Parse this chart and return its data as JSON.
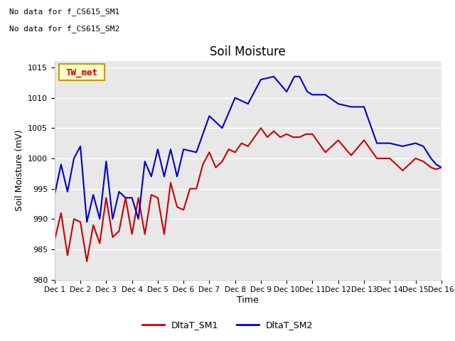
{
  "title": "Soil Moisture",
  "ylabel": "Soil Moisture (mV)",
  "xlabel": "Time",
  "ylim": [
    980,
    1016
  ],
  "yticks": [
    980,
    985,
    990,
    995,
    1000,
    1005,
    1010,
    1015
  ],
  "fig_bg_color": "#ffffff",
  "plot_bg_color": "#e8e8e8",
  "no_data_text1": "No data for f_CS615_SM1",
  "no_data_text2": "No data for f_CS615_SM2",
  "tw_met_label": "TW_met",
  "xtick_labels": [
    "Dec 1",
    "Dec 2",
    "Dec 3",
    "Dec 4",
    "Dec 5",
    "Dec 6",
    "Dec 7",
    "Dec 8",
    "Dec 9",
    "Dec 10",
    "Dec 11",
    "Dec 12",
    "Dec 13",
    "Dec 14",
    "Dec 15",
    "Dec 16"
  ],
  "sm1_color": "#cc0000",
  "sm2_color": "#0000cc",
  "sm1_label": "DltaT_SM1",
  "sm2_label": "DltaT_SM2",
  "sm1_x": [
    0.0,
    0.25,
    0.5,
    0.75,
    1.0,
    1.25,
    1.5,
    1.75,
    2.0,
    2.25,
    2.5,
    2.75,
    3.0,
    3.25,
    3.5,
    3.75,
    4.0,
    4.25,
    4.5,
    4.75,
    5.0,
    5.25,
    5.5,
    5.75,
    6.0,
    6.25,
    6.5,
    6.75,
    7.0,
    7.25,
    7.5,
    7.75,
    8.0,
    8.25,
    8.5,
    8.75,
    9.0,
    9.25,
    9.5,
    9.75,
    10.0,
    10.5,
    11.0,
    11.5,
    12.0,
    12.5,
    13.0,
    13.5,
    14.0,
    14.3,
    14.6,
    14.8,
    15.0
  ],
  "sm1_y": [
    986.5,
    991.0,
    984.0,
    990.0,
    989.5,
    983.0,
    989.0,
    986.0,
    993.5,
    987.0,
    988.0,
    993.5,
    987.5,
    993.5,
    987.5,
    994.0,
    993.5,
    987.5,
    996.0,
    992.0,
    991.5,
    995.0,
    995.0,
    999.0,
    1001.0,
    998.5,
    999.5,
    1001.5,
    1001.0,
    1002.5,
    1002.0,
    1003.5,
    1005.0,
    1003.5,
    1004.5,
    1003.5,
    1004.0,
    1003.5,
    1003.5,
    1004.0,
    1004.0,
    1001.0,
    1003.0,
    1000.5,
    1003.0,
    1000.0,
    1000.0,
    998.0,
    1000.0,
    999.5,
    998.5,
    998.2,
    998.5
  ],
  "sm2_x": [
    0.0,
    0.25,
    0.5,
    0.75,
    1.0,
    1.25,
    1.5,
    1.75,
    2.0,
    2.25,
    2.5,
    2.75,
    3.0,
    3.25,
    3.5,
    3.75,
    4.0,
    4.25,
    4.5,
    4.75,
    5.0,
    5.5,
    6.0,
    6.5,
    7.0,
    7.5,
    8.0,
    8.5,
    9.0,
    9.3,
    9.5,
    9.8,
    10.0,
    10.3,
    10.5,
    11.0,
    11.5,
    12.0,
    12.5,
    13.0,
    13.5,
    14.0,
    14.3,
    14.6,
    14.8,
    15.0
  ],
  "sm2_y": [
    994.0,
    999.0,
    994.5,
    1000.0,
    1002.0,
    989.5,
    994.0,
    990.0,
    999.5,
    990.0,
    994.5,
    993.5,
    993.5,
    990.0,
    999.5,
    997.0,
    1001.5,
    997.0,
    1001.5,
    997.0,
    1001.5,
    1001.0,
    1007.0,
    1005.0,
    1010.0,
    1009.0,
    1013.0,
    1013.5,
    1011.0,
    1013.5,
    1013.5,
    1011.0,
    1010.5,
    1010.5,
    1010.5,
    1009.0,
    1008.5,
    1008.5,
    1002.5,
    1002.5,
    1002.0,
    1002.5,
    1002.0,
    1000.0,
    999.0,
    998.5
  ]
}
